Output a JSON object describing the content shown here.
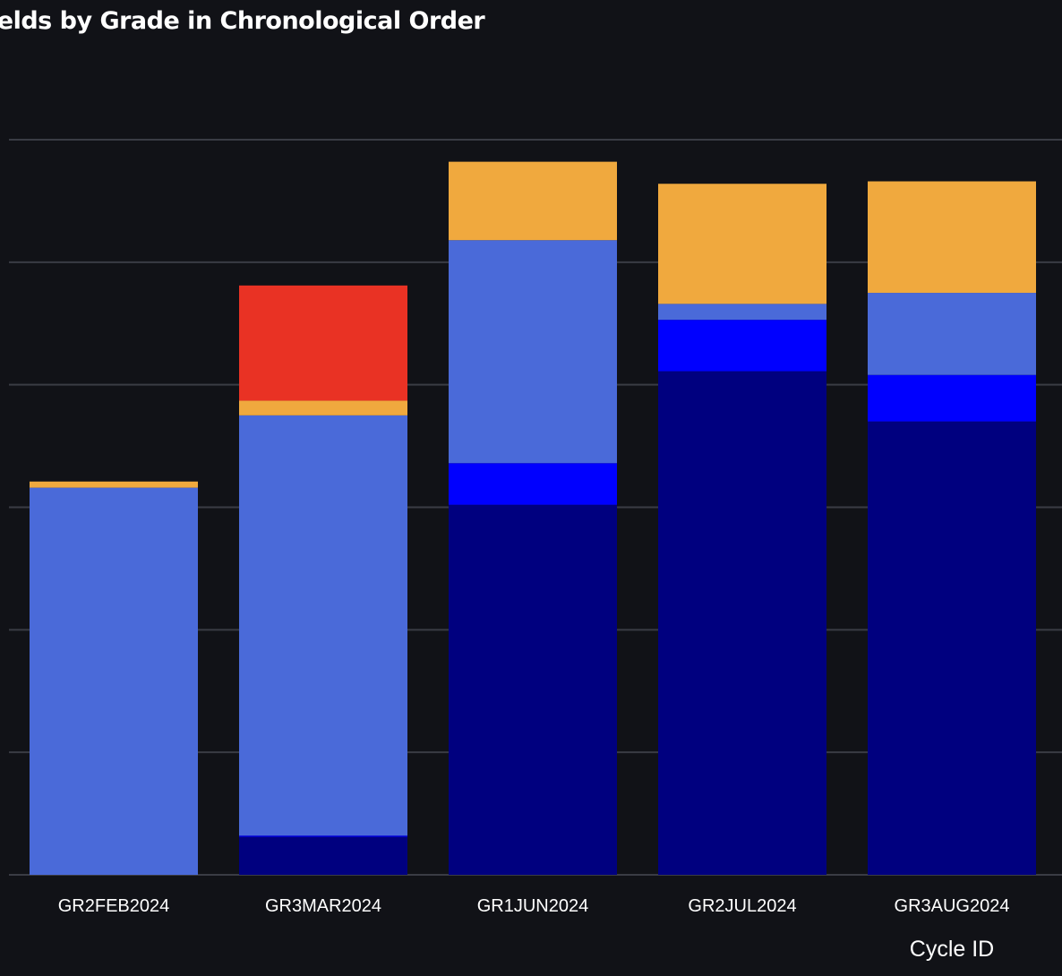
{
  "chart_data": {
    "type": "bar",
    "stacked": true,
    "title": "ields by Grade in Chronological Order",
    "xlabel": "Cycle ID",
    "ylabel": "",
    "categories": [
      "GR2FEB2024",
      "GR3MAR2024",
      "GR1JUN2024",
      "GR2JUL2024",
      "GR3AUG2024"
    ],
    "ylim": [
      0,
      6
    ],
    "grid": true,
    "series": [
      {
        "color": "#00007f",
        "values": [
          0,
          0.31,
          3.02,
          4.11,
          3.7
        ]
      },
      {
        "color": "#0000ff",
        "values": [
          0,
          0.01,
          0.34,
          0.42,
          0.38
        ]
      },
      {
        "color": "#4a6ad9",
        "values": [
          3.16,
          3.43,
          1.82,
          0.13,
          0.67
        ]
      },
      {
        "color": "#f0a93e",
        "values": [
          0.05,
          0.12,
          0.64,
          0.98,
          0.91
        ]
      },
      {
        "color": "#e93224",
        "values": [
          0,
          0.94,
          0,
          0,
          0
        ]
      }
    ]
  }
}
